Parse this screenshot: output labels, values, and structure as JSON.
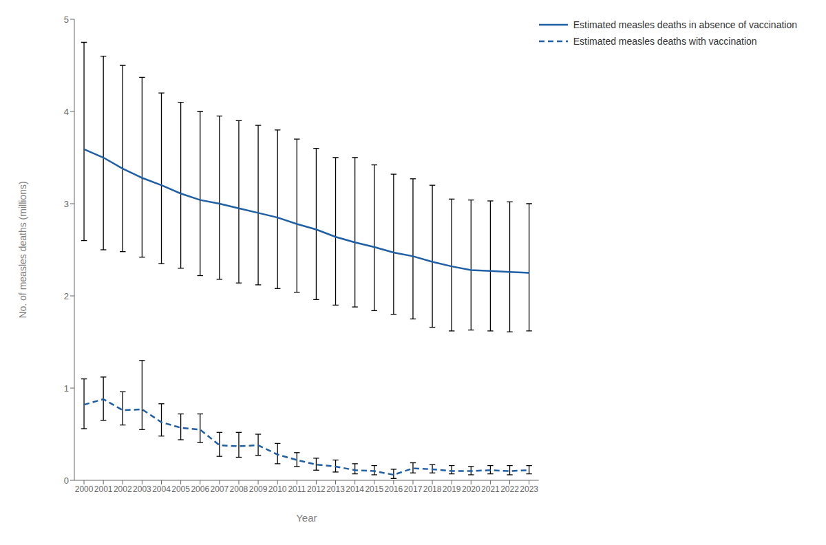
{
  "chart_data": {
    "type": "line",
    "xlabel": "Year",
    "ylabel": "No. of measles deaths (millions)",
    "x": [
      2000,
      2001,
      2002,
      2003,
      2004,
      2005,
      2006,
      2007,
      2008,
      2009,
      2010,
      2011,
      2012,
      2013,
      2014,
      2015,
      2016,
      2017,
      2018,
      2019,
      2020,
      2021,
      2022,
      2023
    ],
    "xlim": [
      1999.5,
      2023.5
    ],
    "xticks": [
      2000,
      2001,
      2002,
      2003,
      2004,
      2005,
      2006,
      2007,
      2008,
      2009,
      2010,
      2011,
      2012,
      2013,
      2014,
      2015,
      2016,
      2017,
      2018,
      2019,
      2020,
      2021,
      2022,
      2023
    ],
    "ylim": [
      0,
      5
    ],
    "yticks": [
      0,
      1,
      2,
      3,
      4,
      5
    ],
    "grid": false,
    "legend": "upper right",
    "series": [
      {
        "name": "Estimated measles deaths in absence of vaccination",
        "color": "#1f5fa6",
        "line_style": "solid",
        "values": [
          3.59,
          3.5,
          3.38,
          3.28,
          3.2,
          3.11,
          3.04,
          3.0,
          2.95,
          2.9,
          2.85,
          2.78,
          2.72,
          2.64,
          2.58,
          2.53,
          2.47,
          2.43,
          2.37,
          2.32,
          2.28,
          2.27,
          2.26,
          2.25
        ],
        "error_bars": {
          "color": "#000000",
          "upper": [
            4.75,
            4.6,
            4.5,
            4.37,
            4.2,
            4.1,
            4.0,
            3.95,
            3.9,
            3.85,
            3.8,
            3.7,
            3.6,
            3.5,
            3.5,
            3.42,
            3.32,
            3.27,
            3.2,
            3.05,
            3.04,
            3.03,
            3.02,
            3.0
          ],
          "lower": [
            2.6,
            2.5,
            2.48,
            2.42,
            2.35,
            2.3,
            2.22,
            2.18,
            2.14,
            2.12,
            2.08,
            2.04,
            1.96,
            1.9,
            1.88,
            1.84,
            1.8,
            1.75,
            1.66,
            1.62,
            1.63,
            1.62,
            1.61,
            1.62
          ]
        }
      },
      {
        "name": "Estimated measles deaths with vaccination",
        "color": "#1f5fa6",
        "line_style": "dashed",
        "values": [
          0.82,
          0.88,
          0.76,
          0.77,
          0.63,
          0.57,
          0.55,
          0.38,
          0.37,
          0.38,
          0.28,
          0.22,
          0.17,
          0.15,
          0.11,
          0.1,
          0.06,
          0.13,
          0.12,
          0.1,
          0.1,
          0.11,
          0.1,
          0.11
        ],
        "error_bars": {
          "color": "#000000",
          "upper": [
            1.1,
            1.12,
            0.96,
            1.3,
            0.83,
            0.72,
            0.72,
            0.52,
            0.52,
            0.5,
            0.4,
            0.3,
            0.24,
            0.22,
            0.18,
            0.16,
            0.12,
            0.19,
            0.17,
            0.16,
            0.15,
            0.16,
            0.16,
            0.16
          ],
          "lower": [
            0.56,
            0.65,
            0.6,
            0.55,
            0.48,
            0.44,
            0.41,
            0.26,
            0.25,
            0.27,
            0.18,
            0.15,
            0.11,
            0.09,
            0.07,
            0.06,
            0.02,
            0.08,
            0.08,
            0.07,
            0.06,
            0.07,
            0.06,
            0.07
          ]
        }
      }
    ]
  }
}
